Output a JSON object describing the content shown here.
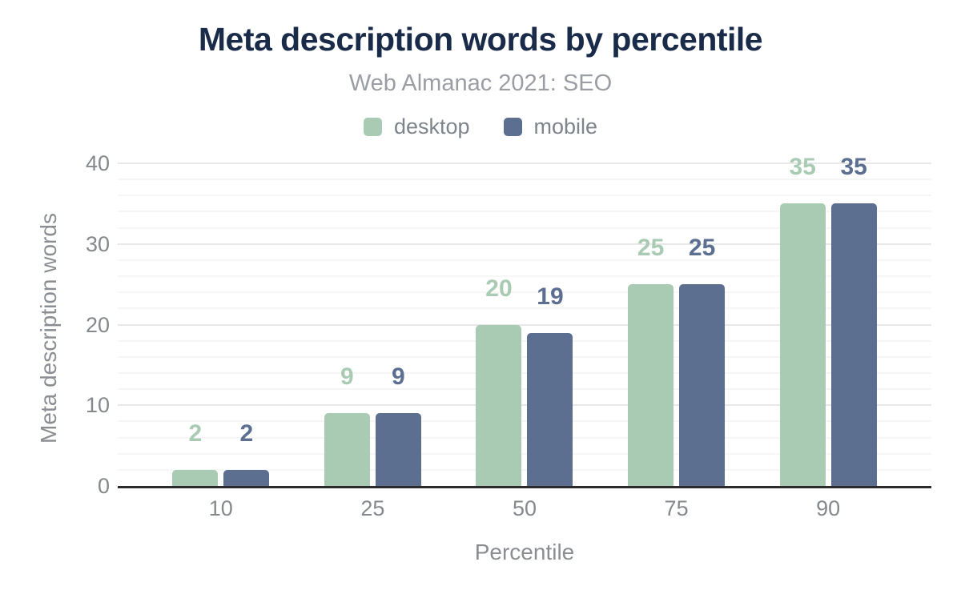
{
  "header": {
    "title": "Meta description words by percentile",
    "subtitle": "Web Almanac 2021: SEO"
  },
  "colors": {
    "title_navy": "#1a2b49",
    "desktop_green": "#a9cbb4",
    "mobile_slate": "#5c6f91",
    "axis_line": "#2b2b2b",
    "major_gridline": "#e8e8e8",
    "minor_gridline": "#f6f6f6",
    "muted_text": "#8a8e93"
  },
  "chart_data": {
    "type": "bar",
    "title": "Meta description words by percentile",
    "subtitle": "Web Almanac 2021: SEO",
    "categories": [
      "10",
      "25",
      "50",
      "75",
      "90"
    ],
    "series": [
      {
        "name": "desktop",
        "color": "#a9cbb4",
        "values": [
          2,
          9,
          20,
          25,
          35
        ],
        "labels": [
          "2",
          "9",
          "20",
          "25",
          "35"
        ]
      },
      {
        "name": "mobile",
        "color": "#5c6f91",
        "values": [
          2,
          9,
          19,
          25,
          35
        ],
        "labels": [
          "2",
          "9",
          "19",
          "25",
          "35"
        ]
      }
    ],
    "xlabel": "Percentile",
    "ylabel": "Meta description words",
    "ylim": [
      0,
      40
    ],
    "yticks": [
      0,
      10,
      20,
      30,
      40
    ],
    "minor_grid_step": 2,
    "grid": true,
    "legend_position": "top"
  }
}
